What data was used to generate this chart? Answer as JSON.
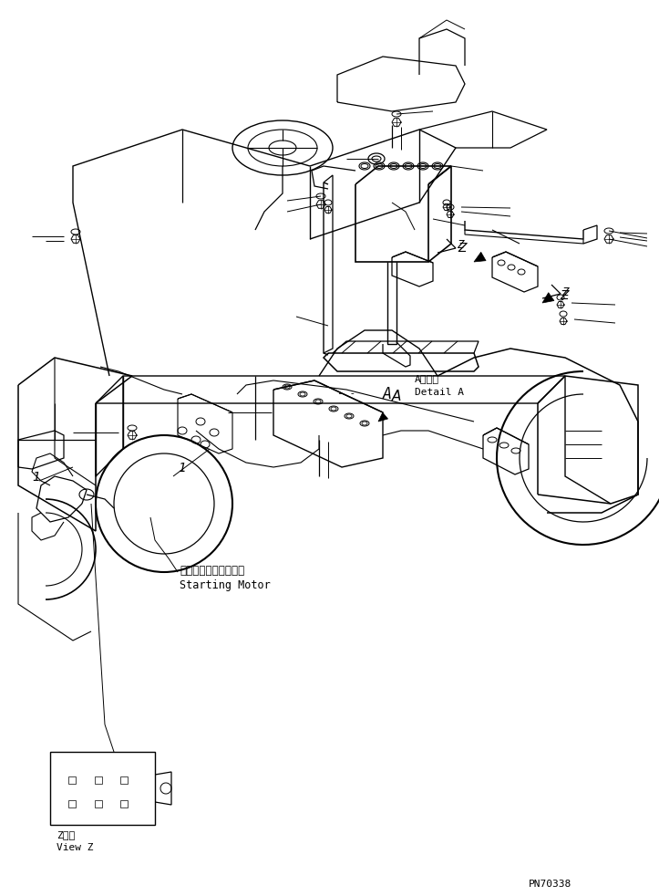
{
  "background_color": "#ffffff",
  "line_color": "#000000",
  "part_number": "PN70338",
  "labels": {
    "starting_motor_jp": "スターティングモータ",
    "starting_motor_en": "Starting Motor",
    "view_z_jp": "Z　視",
    "view_z_en": "View Z",
    "detail_a_jp": "A　詳細",
    "detail_a_en": "Detail A",
    "label_a": "A",
    "label_z1": "Z",
    "label_z2": "Z",
    "label_1": "1",
    "dash_dash": "- -"
  }
}
